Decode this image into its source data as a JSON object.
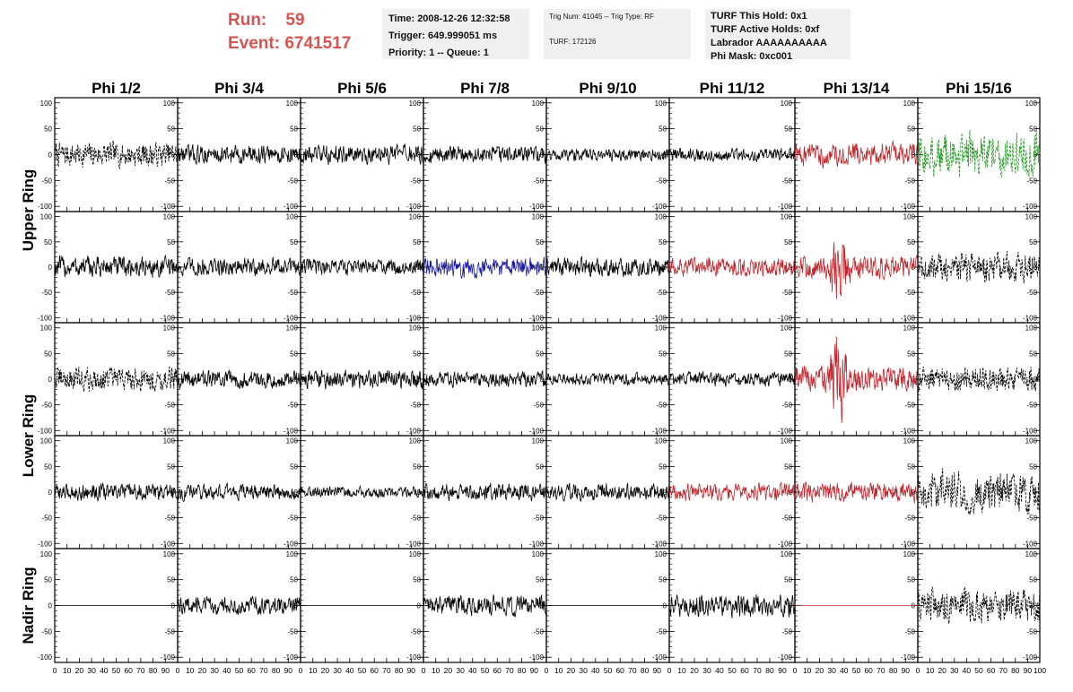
{
  "header": {
    "run_label": "Run:",
    "run_value": "59",
    "event_label": "Event:",
    "event_value": "6741517",
    "time_line": "Time: 2008-12-26 12:32:58",
    "trigger_line": "Trigger: 649.999051 ms",
    "priority_line": "Priority: 1 -- Queue: 1",
    "trig_line": "Trig Num: 41045 -- Trig Type: RF",
    "turf_line": "TURF: 172126",
    "turf_hold_line": "TURF This Hold: 0x1",
    "turf_active_line": "TURF Active Holds: 0xf",
    "labrador_line": "Labrador AAAAAAAAAA",
    "phi_mask_line": "Phi Mask: 0xc001"
  },
  "chart_data": {
    "type": "line",
    "columns": [
      "Phi 1/2",
      "Phi 3/4",
      "Phi 5/6",
      "Phi 7/8",
      "Phi 9/10",
      "Phi 11/12",
      "Phi 13/14",
      "Phi 15/16"
    ],
    "ring_labels": [
      {
        "label": "Upper Ring",
        "rows": [
          0,
          1
        ]
      },
      {
        "label": "Lower Ring",
        "rows": [
          2,
          3
        ]
      },
      {
        "label": "Nadir Ring",
        "rows": [
          4
        ]
      }
    ],
    "xlim": [
      0,
      100
    ],
    "ylim": [
      -110,
      110
    ],
    "x_ticks": [
      "0",
      "10",
      "20",
      "30",
      "40",
      "50",
      "60",
      "70",
      "80",
      "90",
      "100"
    ],
    "y_ticks": [
      "100",
      "50",
      "0",
      "-50",
      "-100"
    ],
    "colors": {
      "black": "#000000",
      "red": "#c0262d",
      "blue": "#1a1a9c",
      "green": "#239a23"
    },
    "panels": [
      [
        {
          "color": "black",
          "amp": 22,
          "dashed": true
        },
        {
          "color": "black",
          "amp": 17,
          "dashed": false
        },
        {
          "color": "black",
          "amp": 17,
          "dashed": false
        },
        {
          "color": "black",
          "amp": 15,
          "dashed": false
        },
        {
          "color": "black",
          "amp": 11,
          "dashed": false
        },
        {
          "color": "black",
          "amp": 12,
          "dashed": false
        },
        {
          "color": "red",
          "amp": 20,
          "dashed": false
        },
        {
          "color": "green",
          "amp": 38,
          "dashed": true
        }
      ],
      [
        {
          "color": "black",
          "amp": 20,
          "dashed": false
        },
        {
          "color": "black",
          "amp": 17,
          "dashed": false
        },
        {
          "color": "black",
          "amp": 15,
          "dashed": false
        },
        {
          "color": "blue",
          "amp": 18,
          "dashed": false
        },
        {
          "color": "black",
          "amp": 17,
          "dashed": false
        },
        {
          "color": "red",
          "amp": 17,
          "dashed": false
        },
        {
          "color": "red",
          "amp": 20,
          "dashed": false,
          "burst": true
        },
        {
          "color": "black",
          "amp": 28,
          "dashed": true
        }
      ],
      [
        {
          "color": "black",
          "amp": 22,
          "dashed": true
        },
        {
          "color": "black",
          "amp": 16,
          "dashed": false
        },
        {
          "color": "black",
          "amp": 18,
          "dashed": false
        },
        {
          "color": "black",
          "amp": 14,
          "dashed": false
        },
        {
          "color": "black",
          "amp": 11,
          "dashed": false
        },
        {
          "color": "black",
          "amp": 13,
          "dashed": false
        },
        {
          "color": "red",
          "amp": 22,
          "dashed": false,
          "burst": true
        },
        {
          "color": "black",
          "amp": 22,
          "dashed": true
        }
      ],
      [
        {
          "color": "black",
          "amp": 15,
          "dashed": false
        },
        {
          "color": "black",
          "amp": 14,
          "dashed": false
        },
        {
          "color": "black",
          "amp": 10,
          "dashed": false
        },
        {
          "color": "black",
          "amp": 15,
          "dashed": false
        },
        {
          "color": "black",
          "amp": 15,
          "dashed": false
        },
        {
          "color": "red",
          "amp": 15,
          "dashed": false
        },
        {
          "color": "red",
          "amp": 18,
          "dashed": false
        },
        {
          "color": "black",
          "amp": 38,
          "dashed": true
        }
      ],
      [
        {
          "color": "black",
          "amp": 0,
          "dashed": false
        },
        {
          "color": "black",
          "amp": 16,
          "dashed": false
        },
        {
          "color": "black",
          "amp": 0,
          "dashed": false
        },
        {
          "color": "black",
          "amp": 18,
          "dashed": false
        },
        {
          "color": "black",
          "amp": 0,
          "dashed": false
        },
        {
          "color": "black",
          "amp": 20,
          "dashed": false
        },
        {
          "color": "red",
          "amp": 0,
          "dashed": false
        },
        {
          "color": "black",
          "amp": 30,
          "dashed": true
        }
      ]
    ]
  }
}
